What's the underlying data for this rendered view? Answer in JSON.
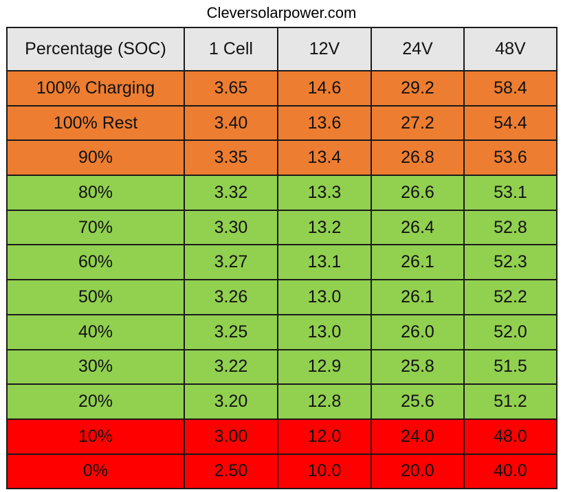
{
  "site_title": "Cleversolarpower.com",
  "colors": {
    "header": "#e6e6e6",
    "orange": "#ed7d31",
    "green": "#92d050",
    "red": "#ff0000",
    "border": "#1a1a1a"
  },
  "table": {
    "headers": [
      "Percentage (SOC)",
      "1 Cell",
      "12V",
      "24V",
      "48V"
    ],
    "rows": [
      {
        "band": "orange",
        "cells": [
          "100% Charging",
          "3.65",
          "14.6",
          "29.2",
          "58.4"
        ]
      },
      {
        "band": "orange",
        "cells": [
          "100% Rest",
          "3.40",
          "13.6",
          "27.2",
          "54.4"
        ]
      },
      {
        "band": "orange",
        "cells": [
          "90%",
          "3.35",
          "13.4",
          "26.8",
          "53.6"
        ]
      },
      {
        "band": "green",
        "cells": [
          "80%",
          "3.32",
          "13.3",
          "26.6",
          "53.1"
        ]
      },
      {
        "band": "green",
        "cells": [
          "70%",
          "3.30",
          "13.2",
          "26.4",
          "52.8"
        ]
      },
      {
        "band": "green",
        "cells": [
          "60%",
          "3.27",
          "13.1",
          "26.1",
          "52.3"
        ]
      },
      {
        "band": "green",
        "cells": [
          "50%",
          "3.26",
          "13.0",
          "26.1",
          "52.2"
        ]
      },
      {
        "band": "green",
        "cells": [
          "40%",
          "3.25",
          "13.0",
          "26.0",
          "52.0"
        ]
      },
      {
        "band": "green",
        "cells": [
          "30%",
          "3.22",
          "12.9",
          "25.8",
          "51.5"
        ]
      },
      {
        "band": "green",
        "cells": [
          "20%",
          "3.20",
          "12.8",
          "25.6",
          "51.2"
        ]
      },
      {
        "band": "red",
        "cells": [
          "10%",
          "3.00",
          "12.0",
          "24.0",
          "48.0"
        ]
      },
      {
        "band": "red",
        "cells": [
          "0%",
          "2.50",
          "10.0",
          "20.0",
          "40.0"
        ]
      }
    ]
  }
}
